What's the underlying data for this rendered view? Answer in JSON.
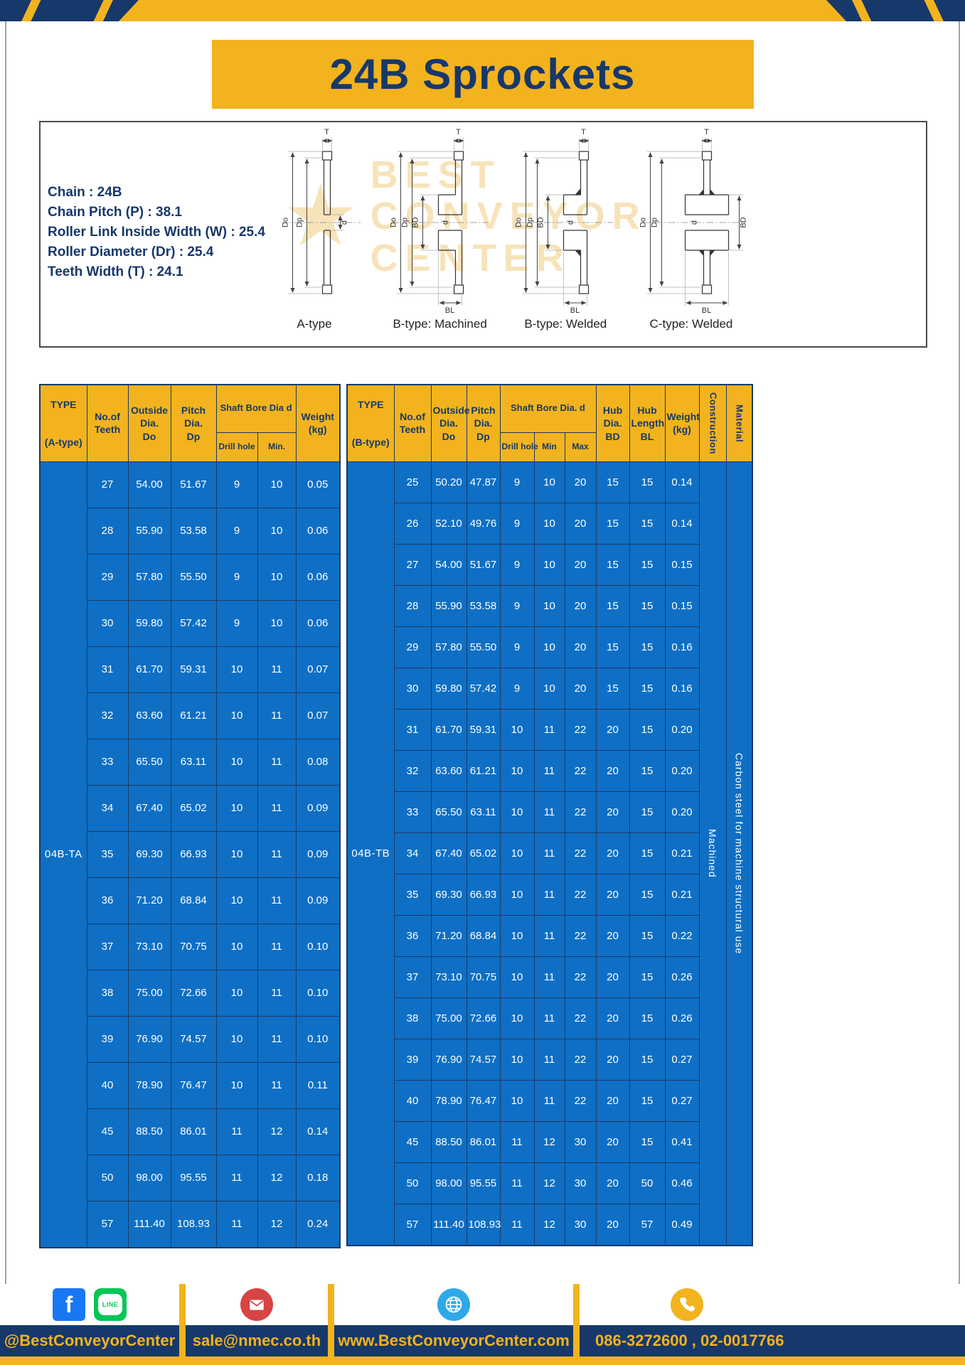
{
  "page_title": "24B Sprockets",
  "specs": [
    "Chain : 24B",
    "Chain Pitch (P) : 38.1",
    "Roller Link Inside Width (W) : 25.4",
    "Roller Diameter (Dr) : 25.4",
    "Teeth Width (T) : 24.1"
  ],
  "watermark": {
    "l1": "BEST",
    "l2": "CONVEYOR",
    "l3": "CENTER",
    "star": "★"
  },
  "diagrams": {
    "labels": {
      "t": "T",
      "do_": "Do",
      "dp": "Dp",
      "d": "d",
      "bd": "BD",
      "bl": "BL"
    },
    "captions": [
      "A-type",
      "B-type: Machined",
      "B-type: Welded",
      "C-type: Welded"
    ]
  },
  "table_a": {
    "headers": {
      "type_title": "TYPE",
      "type_sub": "(A-type)",
      "teeth": "No.of\nTeeth",
      "outside": "Outside\nDia.\nDo",
      "pitch": "Pitch Dia.\nDp",
      "bore_group": "Shaft Bore Dia d",
      "drill": "Drill hole",
      "min": "Min.",
      "weight": "Weight\n(kg)"
    },
    "type_value": "04B-TA",
    "rows": [
      [
        "27",
        "54.00",
        "51.67",
        "9",
        "10",
        "0.05"
      ],
      [
        "28",
        "55.90",
        "53.58",
        "9",
        "10",
        "0.06"
      ],
      [
        "29",
        "57.80",
        "55.50",
        "9",
        "10",
        "0.06"
      ],
      [
        "30",
        "59.80",
        "57.42",
        "9",
        "10",
        "0.06"
      ],
      [
        "31",
        "61.70",
        "59.31",
        "10",
        "11",
        "0.07"
      ],
      [
        "32",
        "63.60",
        "61.21",
        "10",
        "11",
        "0.07"
      ],
      [
        "33",
        "65.50",
        "63.11",
        "10",
        "11",
        "0.08"
      ],
      [
        "34",
        "67.40",
        "65.02",
        "10",
        "11",
        "0.09"
      ],
      [
        "35",
        "69.30",
        "66.93",
        "10",
        "11",
        "0.09"
      ],
      [
        "36",
        "71.20",
        "68.84",
        "10",
        "11",
        "0.09"
      ],
      [
        "37",
        "73.10",
        "70.75",
        "10",
        "11",
        "0.10"
      ],
      [
        "38",
        "75.00",
        "72.66",
        "10",
        "11",
        "0.10"
      ],
      [
        "39",
        "76.90",
        "74.57",
        "10",
        "11",
        "0.10"
      ],
      [
        "40",
        "78.90",
        "76.47",
        "10",
        "11",
        "0.11"
      ],
      [
        "45",
        "88.50",
        "86.01",
        "11",
        "12",
        "0.14"
      ],
      [
        "50",
        "98.00",
        "95.55",
        "11",
        "12",
        "0.18"
      ],
      [
        "57",
        "111.40",
        "108.93",
        "11",
        "12",
        "0.24"
      ]
    ]
  },
  "table_b": {
    "headers": {
      "type_title": "TYPE",
      "type_sub": "(B-type)",
      "teeth": "No.of\nTeeth",
      "outside": "Outside\nDia.\nDo",
      "pitch": "Pitch\nDia.\nDp",
      "bore_group": "Shaft Bore Dia.  d",
      "drill": "Drill hole",
      "min": "Min",
      "max": "Max",
      "hub_dia": "Hub\nDia.\nBD",
      "hub_len": "Hub\nLength\nBL",
      "weight": "Weight\n(kg)",
      "construction": "Construction",
      "material": "Material"
    },
    "type_value": "04B-TB",
    "construction_value": "Machined",
    "material_value": "Carbon steel for machine structural use",
    "rows": [
      [
        "25",
        "50.20",
        "47.87",
        "9",
        "10",
        "20",
        "15",
        "15",
        "0.14"
      ],
      [
        "26",
        "52.10",
        "49.76",
        "9",
        "10",
        "20",
        "15",
        "15",
        "0.14"
      ],
      [
        "27",
        "54.00",
        "51.67",
        "9",
        "10",
        "20",
        "15",
        "15",
        "0.15"
      ],
      [
        "28",
        "55.90",
        "53.58",
        "9",
        "10",
        "20",
        "15",
        "15",
        "0.15"
      ],
      [
        "29",
        "57.80",
        "55.50",
        "9",
        "10",
        "20",
        "15",
        "15",
        "0.16"
      ],
      [
        "30",
        "59.80",
        "57.42",
        "9",
        "10",
        "20",
        "15",
        "15",
        "0.16"
      ],
      [
        "31",
        "61.70",
        "59.31",
        "10",
        "11",
        "22",
        "20",
        "15",
        "0.20"
      ],
      [
        "32",
        "63.60",
        "61.21",
        "10",
        "11",
        "22",
        "20",
        "15",
        "0.20"
      ],
      [
        "33",
        "65.50",
        "63.11",
        "10",
        "11",
        "22",
        "20",
        "15",
        "0.20"
      ],
      [
        "34",
        "67.40",
        "65.02",
        "10",
        "11",
        "22",
        "20",
        "15",
        "0.21"
      ],
      [
        "35",
        "69.30",
        "66.93",
        "10",
        "11",
        "22",
        "20",
        "15",
        "0.21"
      ],
      [
        "36",
        "71.20",
        "68.84",
        "10",
        "11",
        "22",
        "20",
        "15",
        "0.22"
      ],
      [
        "37",
        "73.10",
        "70.75",
        "10",
        "11",
        "22",
        "20",
        "15",
        "0.26"
      ],
      [
        "38",
        "75.00",
        "72.66",
        "10",
        "11",
        "22",
        "20",
        "15",
        "0.26"
      ],
      [
        "39",
        "76.90",
        "74.57",
        "10",
        "11",
        "22",
        "20",
        "15",
        "0.27"
      ],
      [
        "40",
        "78.90",
        "76.47",
        "10",
        "11",
        "22",
        "20",
        "15",
        "0.27"
      ],
      [
        "45",
        "88.50",
        "86.01",
        "11",
        "12",
        "30",
        "20",
        "15",
        "0.41"
      ],
      [
        "50",
        "98.00",
        "95.55",
        "11",
        "12",
        "30",
        "20",
        "50",
        "0.46"
      ],
      [
        "57",
        "111.40",
        "108.93",
        "11",
        "12",
        "30",
        "20",
        "57",
        "0.49"
      ]
    ]
  },
  "footer": {
    "social": "@BestConveyorCenter",
    "email": "sale@nmec.co.th",
    "website": "www.BestConveyorCenter.com",
    "phone": "086-3272600 , 02-0017766",
    "fb_letter": "f",
    "line_text": "LINE"
  },
  "colors": {
    "yellow": "#F2B31E",
    "navy": "#17386B",
    "table_blue": "#0E6FC5"
  }
}
